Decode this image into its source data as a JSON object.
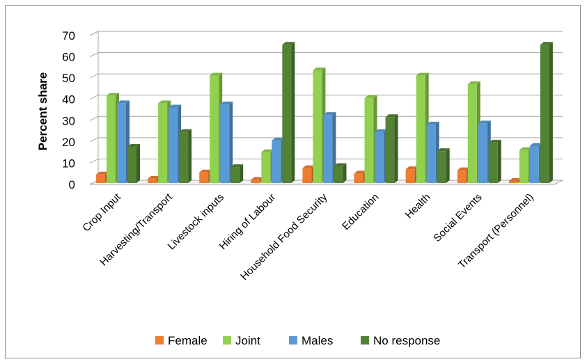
{
  "chart_data": {
    "type": "bar",
    "title": "",
    "xlabel": "",
    "ylabel": "Percent share",
    "ylim": [
      0,
      70
    ],
    "yticks": [
      0,
      10,
      20,
      30,
      40,
      50,
      60,
      70
    ],
    "grid": true,
    "legend_position": "bottom",
    "categories": [
      "Crop Input",
      "Harvesting/Transport",
      "Livestock inputs",
      "Hiring of Labour",
      "Household Food Security",
      "Education",
      "Health",
      "Social Events",
      "Transport (Personnel)"
    ],
    "series": [
      {
        "name": "Female",
        "color": "#ED7D31",
        "values": [
          4,
          2,
          5,
          1.5,
          7,
          4.5,
          6.5,
          6,
          1
        ]
      },
      {
        "name": "Joint",
        "color": "#92D050",
        "values": [
          41,
          37.5,
          50.5,
          14.5,
          53,
          40,
          50.5,
          46.5,
          15.5
        ]
      },
      {
        "name": "Males",
        "color": "#5B9BD5",
        "values": [
          37.5,
          35.5,
          37,
          20,
          32,
          24,
          27.5,
          28,
          17.5
        ]
      },
      {
        "name": "No response",
        "color": "#548235",
        "values": [
          17,
          24,
          7.5,
          65,
          8,
          31,
          15,
          19,
          65
        ]
      }
    ]
  }
}
